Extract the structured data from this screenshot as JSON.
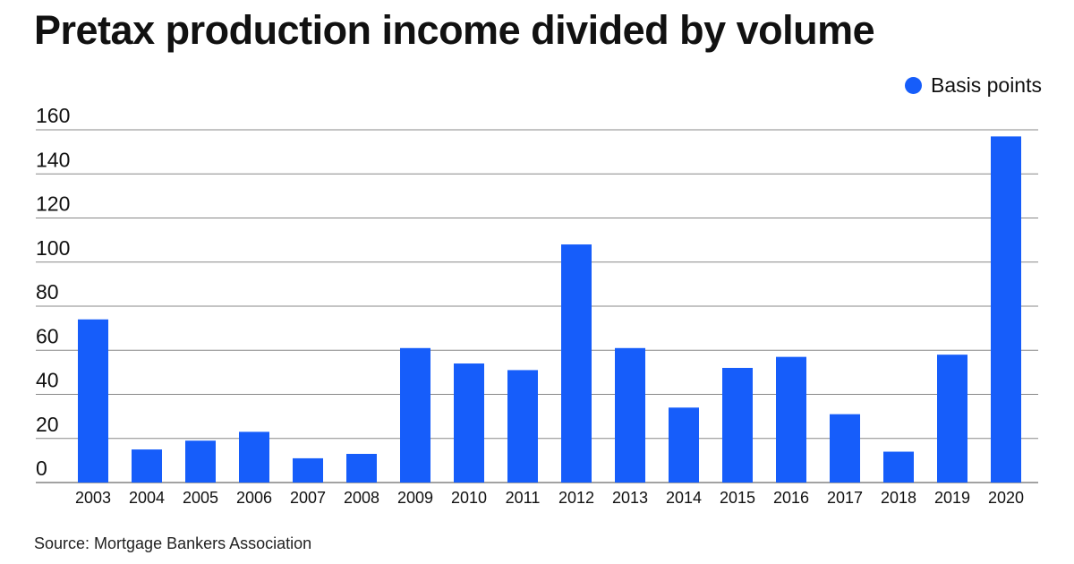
{
  "chart_data": {
    "type": "bar",
    "title": "Pretax production income divided by volume",
    "categories": [
      "2003",
      "2004",
      "2005",
      "2006",
      "2007",
      "2008",
      "2009",
      "2010",
      "2011",
      "2012",
      "2013",
      "2014",
      "2015",
      "2016",
      "2017",
      "2018",
      "2019",
      "2020"
    ],
    "series": [
      {
        "name": "Basis points",
        "values": [
          74,
          15,
          19,
          23,
          11,
          13,
          61,
          54,
          51,
          108,
          61,
          34,
          52,
          57,
          31,
          14,
          58,
          157
        ],
        "color": "#165dfa"
      }
    ],
    "xlabel": "",
    "ylabel": "",
    "ylim": [
      0,
      160
    ],
    "yticks": [
      0,
      20,
      40,
      60,
      80,
      100,
      120,
      140,
      160
    ],
    "grid": true,
    "legend_position": "top-right",
    "source": "Source: Mortgage Bankers Association"
  }
}
